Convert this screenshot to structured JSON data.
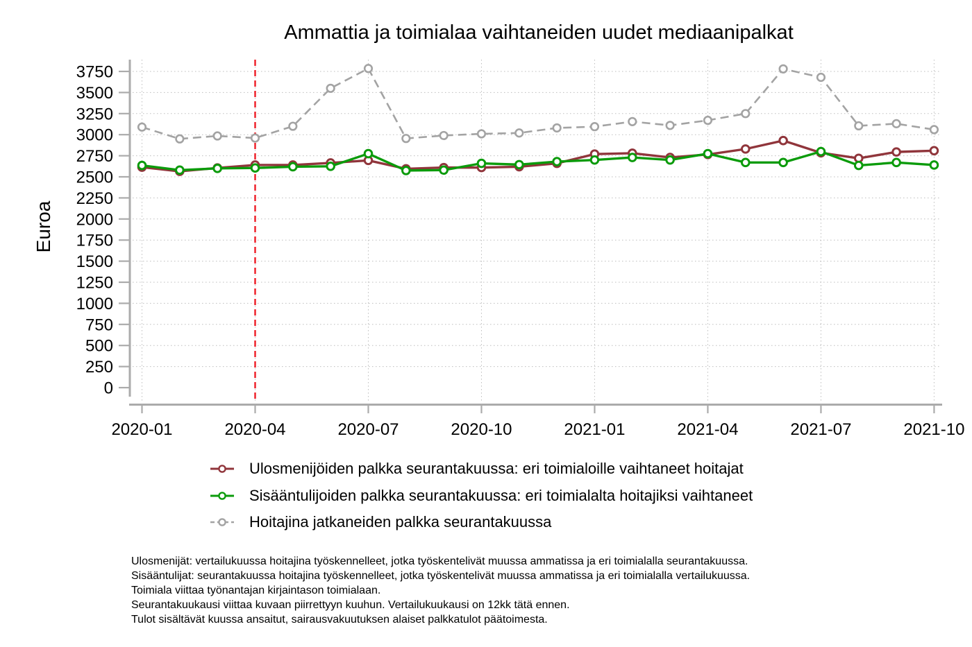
{
  "title": "Ammattia ja toimialaa vaihtaneiden uudet mediaanipalkat",
  "chart_data": {
    "type": "line",
    "title": "Ammattia ja toimialaa vaihtaneiden uudet mediaanipalkat",
    "xlabel": "",
    "ylabel": "Euroa",
    "ylim": [
      0,
      3750
    ],
    "grid": true,
    "legend_position": "bottom",
    "x": [
      "2020-01",
      "2020-02",
      "2020-03",
      "2020-04",
      "2020-05",
      "2020-06",
      "2020-07",
      "2020-08",
      "2020-09",
      "2020-10",
      "2020-11",
      "2020-12",
      "2021-01",
      "2021-02",
      "2021-03",
      "2021-04",
      "2021-05",
      "2021-06",
      "2021-07",
      "2021-08",
      "2021-09",
      "2021-10"
    ],
    "x_tick_labels": [
      "2020-01",
      "2020-04",
      "2020-07",
      "2020-10",
      "2021-01",
      "2021-04",
      "2021-07",
      "2021-10"
    ],
    "y_ticks": [
      0,
      250,
      500,
      750,
      1000,
      1250,
      1500,
      1750,
      2000,
      2250,
      2500,
      2750,
      3000,
      3250,
      3500,
      3750
    ],
    "reference_line": {
      "x": "2020-04",
      "style": "dashed",
      "color": "#ee1b24"
    },
    "series": [
      {
        "name": "Ulosmenijöiden palkka seurantakuussa: eri toimialoille vaihtaneet hoitajat",
        "color": "#90353B",
        "style": "solid",
        "marker": "open-circle",
        "values": [
          2615,
          2565,
          2605,
          2640,
          2640,
          2665,
          2695,
          2595,
          2610,
          2610,
          2620,
          2660,
          2770,
          2780,
          2730,
          2765,
          2830,
          2930,
          2785,
          2720,
          2795,
          2810
        ]
      },
      {
        "name": "Sisääntulijoiden palkka seurantakuussa: eri toimialalta hoitajiksi vaihtaneet",
        "color": "#0b9b0b",
        "style": "solid",
        "marker": "open-circle",
        "values": [
          2635,
          2580,
          2600,
          2605,
          2620,
          2625,
          2775,
          2575,
          2580,
          2660,
          2645,
          2680,
          2700,
          2730,
          2700,
          2775,
          2670,
          2670,
          2800,
          2635,
          2670,
          2640
        ]
      },
      {
        "name": "Hoitajina jatkaneiden palkka seurantakuussa",
        "color": "#a3a3a3",
        "style": "dashed",
        "marker": "open-circle",
        "values": [
          3090,
          2950,
          2985,
          2960,
          3100,
          3550,
          3785,
          2955,
          2990,
          3010,
          3020,
          3080,
          3095,
          3155,
          3110,
          3170,
          3250,
          3780,
          3680,
          3105,
          3130,
          3060
        ]
      }
    ]
  },
  "footnotes": [
    "Ulosmenijät: vertailukuussa hoitajina työskennelleet, jotka työskentelivät muussa ammatissa ja eri toimialalla seurantakuussa.",
    "Sisääntulijat: seurantakuussa hoitajina työskennelleet, jotka työskentelivät muussa ammatissa ja eri toimialalla vertailukuussa.",
    "Toimiala viittaa työnantajan kirjaintason toimialaan.",
    "Seurantakuukausi viittaa kuvaan piirrettyyn kuuhun. Vertailukuukausi on 12kk tätä ennen.",
    "Tulot sisältävät kuussa ansaitut, sairausvakuutuksen alaiset palkkatulot päätoimesta."
  ]
}
